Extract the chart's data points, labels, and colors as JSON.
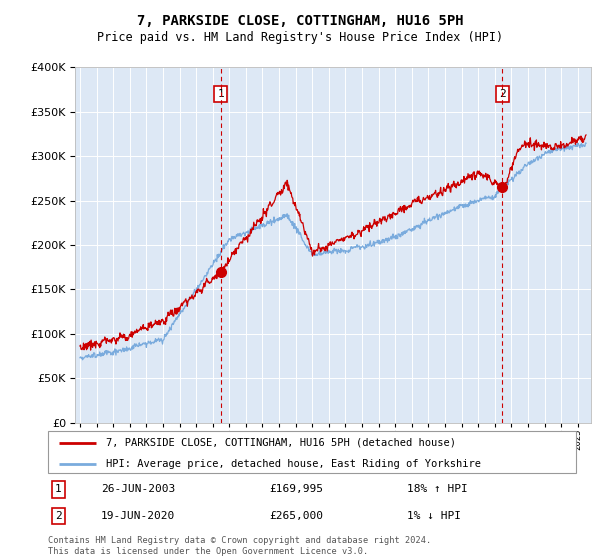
{
  "title": "7, PARKSIDE CLOSE, COTTINGHAM, HU16 5PH",
  "subtitle": "Price paid vs. HM Land Registry's House Price Index (HPI)",
  "legend_line1": "7, PARKSIDE CLOSE, COTTINGHAM, HU16 5PH (detached house)",
  "legend_line2": "HPI: Average price, detached house, East Riding of Yorkshire",
  "annotation1_date": "26-JUN-2003",
  "annotation1_price": "£169,995",
  "annotation1_hpi": "18% ↑ HPI",
  "annotation1_year": 2003.48,
  "annotation1_value": 169995,
  "annotation2_date": "19-JUN-2020",
  "annotation2_price": "£265,000",
  "annotation2_hpi": "1% ↓ HPI",
  "annotation2_year": 2020.46,
  "annotation2_value": 265000,
  "footer": "Contains HM Land Registry data © Crown copyright and database right 2024.\nThis data is licensed under the Open Government Licence v3.0.",
  "bg_color": "#dde8f5",
  "red_color": "#cc0000",
  "blue_color": "#7aabdd",
  "grid_color": "#ffffff",
  "ylim": [
    0,
    400000
  ],
  "y_label_max": 400000,
  "xlim_start": 1994.7,
  "xlim_end": 2025.8
}
